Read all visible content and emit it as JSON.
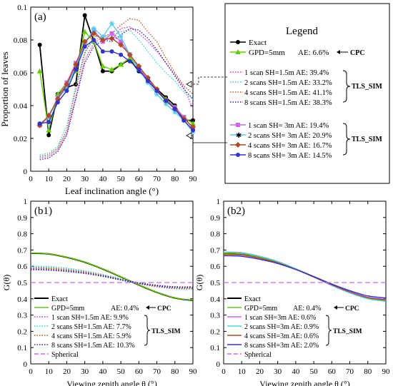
{
  "colors": {
    "exact": "#000000",
    "gpd": "#66cc00",
    "s1_15": "#cc33cc",
    "s2_15": "#33ccdd",
    "s4_15": "#c04a1a",
    "s8_15": "#2222aa",
    "s1_3": "#cc66ee",
    "s2_3": "#55ccee",
    "s4_3": "#b04a28",
    "s8_3": "#3333cc",
    "spherical": "#cc66ee"
  },
  "legend_panel": {
    "title": "Legend",
    "row_exact": "Exact",
    "row_gpd": "GPD=5mm",
    "row_gpd_ae": "AE: 6.6%",
    "cpc": "CPC",
    "r15_1": "1 scan  SH=1.5m AE: 39.4%",
    "r15_2": "2 scans SH=1.5m AE: 33.2%",
    "r15_4": "4 scans SH=1.5m AE: 41.1%",
    "r15_8": "8 scans SH=1.5m AE: 38.3%",
    "r3_1": "1 scan   SH= 3m  AE: 19.4%",
    "r3_2": "2 scans  SH= 3m  AE: 20.9%",
    "r3_4": "4 scans  SH= 3m  AE: 16.7%",
    "r3_8": "8 scans  SH= 3m  AE: 14.5%",
    "tls_sim_a": "TLS_SIM",
    "tls_sim_b": "TLS_SIM"
  },
  "panel_b1_legend": {
    "exact": "Exact",
    "gpd": "GPD=5mm",
    "gpd_ae": "AE: 0.4%",
    "cpc": "CPC",
    "s1": "1 scan  SH=1.5m AE: 9.9%",
    "s2": "2 scans SH=1.5m AE: 7.7%",
    "s4": "4 scans SH=1.5m AE: 5.9%",
    "s8": "8 scans SH=1.5m AE: 10.3%",
    "tls": "TLS_SIM",
    "spherical": "Spherical"
  },
  "panel_b2_legend": {
    "exact": "Exact",
    "gpd": "GPD=5mm",
    "gpd_ae": "AE: 0.4%",
    "cpc": "CPC",
    "s1": "1 scan  SH=3m AE: 0.6%",
    "s2": "2 scans SH=3m AE: 0.9%",
    "s4": "4 scans SH=3m AE: 0.6%",
    "s8": "8 scans SH=3m AE: 2.0%",
    "tls": "TLS_SIM",
    "spherical": "Spherical"
  },
  "chart_data": [
    {
      "panel_label": "(a)",
      "type": "line",
      "xlabel": "Leaf inclination angle (°)",
      "ylabel": "Proportion of leaves",
      "xlim": [
        0,
        90
      ],
      "ylim": [
        0,
        0.1
      ],
      "xticks": [
        "0",
        "10",
        "20",
        "30",
        "40",
        "50",
        "60",
        "70",
        "80",
        "90"
      ],
      "yticks": [
        "0",
        "0.02",
        "0.04",
        "0.06",
        "0.08",
        "0.1"
      ],
      "x": [
        5,
        10,
        15,
        20,
        25,
        30,
        35,
        40,
        45,
        50,
        55,
        60,
        65,
        70,
        75,
        80,
        85,
        90
      ],
      "series": [
        {
          "name": "Exact",
          "values": [
            0.077,
            0.022,
            0.047,
            0.051,
            0.053,
            0.095,
            0.079,
            0.061,
            0.061,
            0.065,
            0.068,
            0.061,
            0.056,
            0.05,
            0.045,
            0.04,
            0.031,
            0.031
          ]
        },
        {
          "name": "GPD=5mm",
          "values": [
            0.061,
            0.025,
            0.047,
            0.054,
            0.061,
            0.085,
            0.079,
            0.064,
            0.062,
            0.065,
            0.069,
            0.063,
            0.055,
            0.049,
            0.044,
            0.039,
            0.033,
            0.029
          ]
        },
        {
          "name": "1 scan SH=1.5m",
          "values": [
            0.008,
            0.009,
            0.013,
            0.023,
            0.045,
            0.068,
            0.078,
            0.082,
            0.08,
            0.087,
            0.088,
            0.084,
            0.079,
            0.073,
            0.066,
            0.059,
            0.051,
            0.038
          ]
        },
        {
          "name": "2 scans SH=1.5m",
          "values": [
            0.01,
            0.011,
            0.015,
            0.028,
            0.052,
            0.073,
            0.08,
            0.082,
            0.083,
            0.085,
            0.086,
            0.08,
            0.073,
            0.066,
            0.06,
            0.055,
            0.048,
            0.044
          ]
        },
        {
          "name": "4 scans SH=1.5m",
          "values": [
            0.009,
            0.01,
            0.014,
            0.025,
            0.05,
            0.072,
            0.082,
            0.082,
            0.084,
            0.089,
            0.093,
            0.092,
            0.085,
            0.079,
            0.069,
            0.06,
            0.052,
            0.047
          ]
        },
        {
          "name": "8 scans SH=1.5m",
          "values": [
            0.007,
            0.008,
            0.012,
            0.022,
            0.044,
            0.066,
            0.076,
            0.08,
            0.079,
            0.083,
            0.087,
            0.086,
            0.081,
            0.074,
            0.066,
            0.058,
            0.05,
            0.044
          ]
        },
        {
          "name": "1 scan SH=3m",
          "values": [
            0.028,
            0.033,
            0.045,
            0.054,
            0.066,
            0.078,
            0.086,
            0.079,
            0.084,
            0.079,
            0.071,
            0.063,
            0.056,
            0.049,
            0.043,
            0.039,
            0.033,
            0.026
          ]
        },
        {
          "name": "2 scans SH=3m",
          "values": [
            0.029,
            0.033,
            0.044,
            0.051,
            0.064,
            0.077,
            0.087,
            0.082,
            0.09,
            0.082,
            0.071,
            0.062,
            0.054,
            0.047,
            0.041,
            0.036,
            0.031,
            0.024
          ]
        },
        {
          "name": "4 scans SH=3m",
          "values": [
            0.028,
            0.034,
            0.044,
            0.053,
            0.065,
            0.079,
            0.084,
            0.08,
            0.081,
            0.077,
            0.071,
            0.064,
            0.057,
            0.05,
            0.043,
            0.038,
            0.032,
            0.027
          ]
        },
        {
          "name": "8 scans SH=3m",
          "values": [
            0.029,
            0.03,
            0.042,
            0.049,
            0.062,
            0.076,
            0.08,
            0.073,
            0.073,
            0.071,
            0.067,
            0.062,
            0.055,
            0.049,
            0.043,
            0.038,
            0.031,
            0.025
          ]
        }
      ]
    },
    {
      "panel_label": "(b1)",
      "type": "line",
      "xlabel": "Viewing zenith angle θ (°)",
      "ylabel": "G(θ)",
      "xlim": [
        0,
        90
      ],
      "ylim": [
        0,
        1
      ],
      "xticks": [
        "0",
        "10",
        "20",
        "30",
        "40",
        "50",
        "60",
        "70",
        "80",
        "90"
      ],
      "yticks": [
        "0",
        "0.1",
        "0.2",
        "0.3",
        "0.4",
        "0.5",
        "0.6",
        "0.7",
        "0.8",
        "0.9",
        "1"
      ],
      "x": [
        0,
        10,
        20,
        30,
        40,
        50,
        60,
        70,
        80,
        90
      ],
      "series": [
        {
          "name": "Exact",
          "values": [
            0.68,
            0.676,
            0.655,
            0.625,
            0.583,
            0.535,
            0.485,
            0.44,
            0.405,
            0.39
          ]
        },
        {
          "name": "GPD=5mm",
          "values": [
            0.681,
            0.677,
            0.656,
            0.626,
            0.584,
            0.536,
            0.486,
            0.441,
            0.406,
            0.392
          ]
        },
        {
          "name": "1 scan SH=1.5m",
          "values": [
            0.585,
            0.582,
            0.573,
            0.56,
            0.541,
            0.518,
            0.497,
            0.481,
            0.472,
            0.47
          ]
        },
        {
          "name": "2 scans SH=1.5m",
          "values": [
            0.6,
            0.597,
            0.587,
            0.571,
            0.548,
            0.522,
            0.496,
            0.475,
            0.463,
            0.46
          ]
        },
        {
          "name": "4 scans SH=1.5m",
          "values": [
            0.591,
            0.588,
            0.578,
            0.564,
            0.543,
            0.518,
            0.494,
            0.477,
            0.467,
            0.465
          ]
        },
        {
          "name": "8 scans SH=1.5m",
          "values": [
            0.58,
            0.577,
            0.569,
            0.557,
            0.539,
            0.517,
            0.497,
            0.482,
            0.473,
            0.472
          ]
        },
        {
          "name": "Spherical",
          "values": [
            0.5,
            0.5,
            0.5,
            0.5,
            0.5,
            0.5,
            0.5,
            0.5,
            0.5,
            0.5
          ]
        }
      ]
    },
    {
      "panel_label": "(b2)",
      "type": "line",
      "xlabel": "Viewing zenith angle θ (°)",
      "ylabel": "G(θ)",
      "xlim": [
        0,
        90
      ],
      "ylim": [
        0,
        1
      ],
      "xticks": [
        "0",
        "10",
        "20",
        "30",
        "40",
        "50",
        "60",
        "70",
        "80",
        "90"
      ],
      "yticks": [
        "0",
        "0.1",
        "0.2",
        "0.3",
        "0.4",
        "0.5",
        "0.6",
        "0.7",
        "0.8",
        "0.9",
        "1"
      ],
      "x": [
        0,
        10,
        20,
        30,
        40,
        50,
        60,
        70,
        80,
        90
      ],
      "series": [
        {
          "name": "Exact",
          "values": [
            0.68,
            0.676,
            0.655,
            0.625,
            0.583,
            0.535,
            0.485,
            0.44,
            0.405,
            0.39
          ]
        },
        {
          "name": "GPD=5mm",
          "values": [
            0.681,
            0.677,
            0.656,
            0.626,
            0.584,
            0.536,
            0.486,
            0.441,
            0.406,
            0.392
          ]
        },
        {
          "name": "1 scan SH=3m",
          "values": [
            0.672,
            0.668,
            0.649,
            0.621,
            0.581,
            0.535,
            0.487,
            0.444,
            0.41,
            0.397
          ]
        },
        {
          "name": "2 scans SH=3m",
          "values": [
            0.688,
            0.684,
            0.662,
            0.63,
            0.585,
            0.534,
            0.482,
            0.436,
            0.4,
            0.385
          ]
        },
        {
          "name": "4 scans SH=3m",
          "values": [
            0.675,
            0.671,
            0.651,
            0.622,
            0.581,
            0.534,
            0.486,
            0.442,
            0.408,
            0.394
          ]
        },
        {
          "name": "8 scans SH=3m",
          "values": [
            0.665,
            0.661,
            0.643,
            0.617,
            0.58,
            0.537,
            0.491,
            0.45,
            0.418,
            0.405
          ]
        },
        {
          "name": "Spherical",
          "values": [
            0.5,
            0.5,
            0.5,
            0.5,
            0.5,
            0.5,
            0.5,
            0.5,
            0.5,
            0.5
          ]
        }
      ]
    }
  ]
}
